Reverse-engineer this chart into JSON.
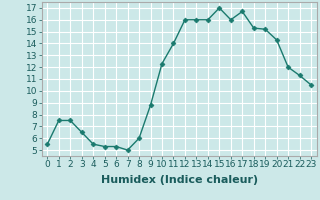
{
  "x": [
    0,
    1,
    2,
    3,
    4,
    5,
    6,
    7,
    8,
    9,
    10,
    11,
    12,
    13,
    14,
    15,
    16,
    17,
    18,
    19,
    20,
    21,
    22,
    23
  ],
  "y": [
    5.5,
    7.5,
    7.5,
    6.5,
    5.5,
    5.3,
    5.3,
    5.0,
    6.0,
    8.8,
    12.3,
    14.0,
    16.0,
    16.0,
    16.0,
    17.0,
    16.0,
    16.7,
    15.3,
    15.2,
    14.3,
    12.0,
    11.3,
    10.5
  ],
  "xlabel": "Humidex (Indice chaleur)",
  "xlim": [
    -0.5,
    23.5
  ],
  "ylim": [
    4.5,
    17.5
  ],
  "yticks": [
    5,
    6,
    7,
    8,
    9,
    10,
    11,
    12,
    13,
    14,
    15,
    16,
    17
  ],
  "xticks": [
    0,
    1,
    2,
    3,
    4,
    5,
    6,
    7,
    8,
    9,
    10,
    11,
    12,
    13,
    14,
    15,
    16,
    17,
    18,
    19,
    20,
    21,
    22,
    23
  ],
  "line_color": "#1a7a6e",
  "marker": "D",
  "marker_size": 2.5,
  "bg_color": "#cce8e8",
  "grid_color": "#ffffff",
  "xlabel_fontsize": 8,
  "tick_fontsize": 6.5
}
